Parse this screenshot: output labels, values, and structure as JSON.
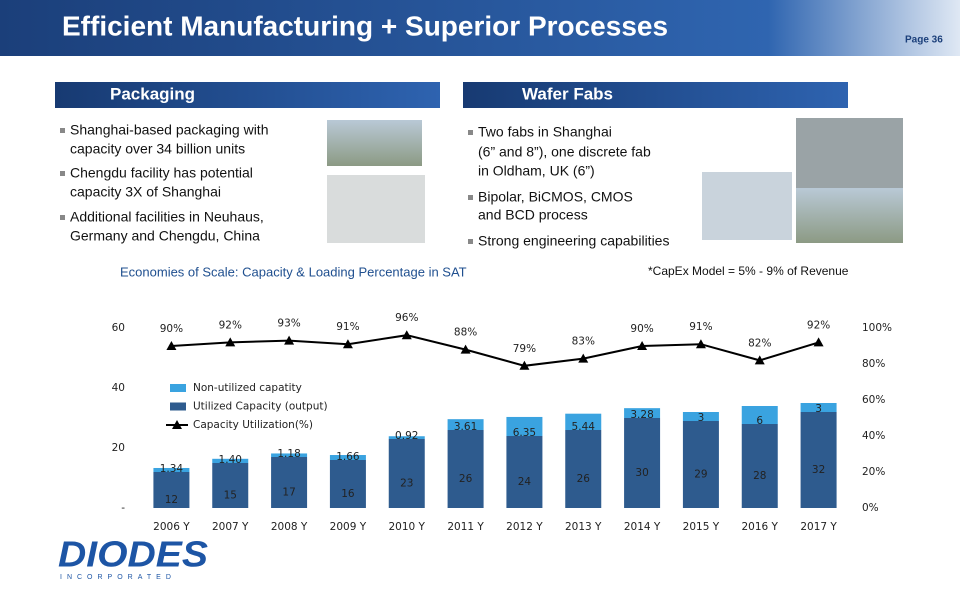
{
  "header": {
    "title": "Efficient Manufacturing + Superior Processes",
    "page": "Page 36"
  },
  "sections": [
    {
      "title": "Packaging",
      "bullets": [
        [
          "Shanghai-based packaging with",
          "capacity over 34 billion units"
        ],
        [
          "Chengdu facility has potential",
          "capacity 3X of Shanghai"
        ],
        [
          "Additional facilities in Neuhaus,",
          "Germany and Chengdu, China"
        ]
      ]
    },
    {
      "title": "Wafer Fabs",
      "bullets": [
        [
          "Two fabs in Shanghai",
          "(6” and 8”), one discrete fab",
          "in Oldham, UK (6”)"
        ],
        [
          "Bipolar, BiCMOS, CMOS",
          "and BCD process"
        ],
        [
          "Strong engineering capabilities"
        ]
      ]
    }
  ],
  "note": "*CapEx Model = 5% - 9% of Revenue",
  "logo": {
    "name": "DIODES",
    "tagline": "INCORPORATED"
  },
  "chart_data": {
    "type": "bar",
    "stacked": true,
    "title": "Economies of Scale: Capacity & Loading Percentage in SAT",
    "categories": [
      "2006 Y",
      "2007 Y",
      "2008 Y",
      "2009 Y",
      "2010 Y",
      "2011 Y",
      "2012 Y",
      "2013 Y",
      "2014 Y",
      "2015 Y",
      "2016 Y",
      "2017 Y"
    ],
    "series": [
      {
        "name": "Utilized Capacity (output)",
        "color": "#2e5b8e",
        "values": [
          12,
          15,
          17,
          16,
          23,
          26,
          24,
          26,
          30,
          29,
          28,
          32
        ]
      },
      {
        "name": "Non-utilized capatity",
        "color": "#3aa3e0",
        "values": [
          1.34,
          1.4,
          1.18,
          1.66,
          0.92,
          3.61,
          6.35,
          5.44,
          3.28,
          3,
          6,
          3
        ],
        "value_labels": [
          "1.34",
          "1.40",
          "1.18",
          "1.66",
          "0.92",
          "3.61",
          "6.35",
          "5.44",
          "3.28",
          "3",
          "6",
          "3"
        ]
      },
      {
        "name": "Capacity Utilization(%)",
        "type": "line",
        "axis": "y2",
        "color": "#000000",
        "values": [
          90,
          92,
          93,
          91,
          96,
          88,
          79,
          83,
          90,
          91,
          82,
          92
        ],
        "value_labels": [
          "90%",
          "92%",
          "93%",
          "91%",
          "96%",
          "88%",
          "79%",
          "83%",
          "90%",
          "91%",
          "82%",
          "92%"
        ]
      }
    ],
    "ylim": [
      0,
      60
    ],
    "yticks": [
      {
        "value": 0,
        "label": "-"
      },
      20,
      40,
      60
    ],
    "y2lim": [
      0,
      100
    ],
    "y2ticks": [
      {
        "value": 0,
        "label": "0%"
      },
      {
        "value": 20,
        "label": "20%"
      },
      {
        "value": 40,
        "label": "40%"
      },
      {
        "value": 60,
        "label": "60%"
      },
      {
        "value": 80,
        "label": "80%"
      },
      {
        "value": 100,
        "label": "100%"
      }
    ]
  }
}
